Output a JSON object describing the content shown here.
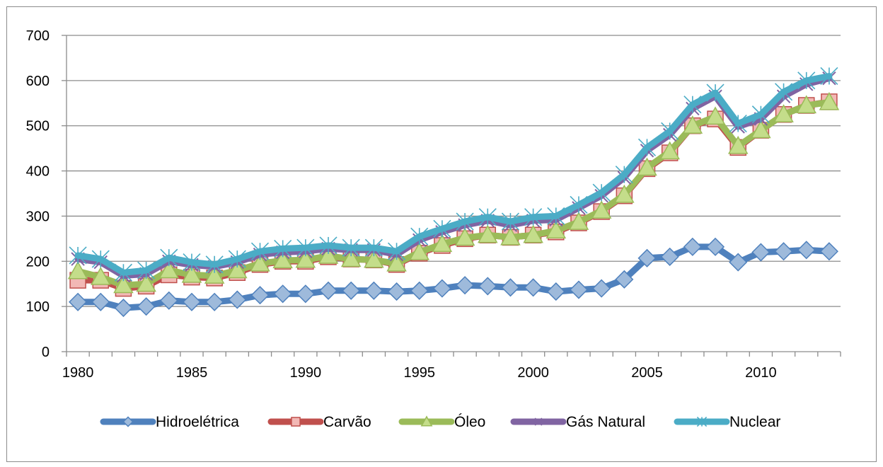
{
  "chart_data": {
    "type": "line",
    "title": "",
    "xlabel": "",
    "ylabel": "",
    "ylim": [
      0,
      700
    ],
    "xlim": [
      1980,
      2013
    ],
    "y_ticks": [
      "0",
      "100",
      "200",
      "300",
      "400",
      "500",
      "600",
      "700"
    ],
    "x_ticks": [
      "1980",
      "1985",
      "1990",
      "1995",
      "2000",
      "2005",
      "2010"
    ],
    "grid": "horizontal",
    "legend_position": "bottom",
    "x": [
      1980,
      1981,
      1982,
      1983,
      1984,
      1985,
      1986,
      1987,
      1988,
      1989,
      1990,
      1991,
      1992,
      1993,
      1994,
      1995,
      1996,
      1997,
      1998,
      1999,
      2000,
      2001,
      2002,
      2003,
      2004,
      2005,
      2006,
      2007,
      2008,
      2009,
      2010,
      2011,
      2012,
      2013
    ],
    "series": [
      {
        "name": "Hidroelétrica",
        "color": "#4F81BD",
        "marker": "diamond",
        "values": [
          110,
          110,
          97,
          100,
          113,
          110,
          110,
          115,
          125,
          128,
          128,
          135,
          135,
          135,
          133,
          135,
          140,
          147,
          145,
          142,
          142,
          133,
          137,
          140,
          160,
          207,
          210,
          232,
          232,
          198,
          220,
          222,
          225,
          222
        ]
      },
      {
        "name": "Carvão",
        "color": "#C0504D",
        "marker": "square",
        "values": [
          158,
          158,
          140,
          145,
          170,
          165,
          163,
          175,
          193,
          200,
          200,
          210,
          205,
          203,
          193,
          218,
          235,
          250,
          258,
          253,
          258,
          265,
          285,
          310,
          345,
          405,
          440,
          500,
          515,
          452,
          490,
          525,
          545,
          553
        ]
      },
      {
        "name": "Óleo",
        "color": "#9BBB59",
        "marker": "triangle",
        "values": [
          178,
          165,
          147,
          150,
          180,
          170,
          168,
          180,
          195,
          202,
          203,
          212,
          205,
          203,
          195,
          220,
          238,
          252,
          258,
          253,
          258,
          268,
          287,
          312,
          347,
          407,
          443,
          500,
          520,
          455,
          490,
          525,
          545,
          552
        ]
      },
      {
        "name": "Gás Natural",
        "color": "#8064A2",
        "marker": "x",
        "values": [
          205,
          198,
          168,
          172,
          200,
          192,
          188,
          198,
          215,
          220,
          222,
          228,
          225,
          225,
          215,
          247,
          265,
          280,
          290,
          280,
          290,
          292,
          318,
          345,
          385,
          445,
          480,
          538,
          565,
          498,
          515,
          565,
          592,
          605
        ]
      },
      {
        "name": "Nuclear",
        "color": "#4BACC6",
        "marker": "asterisk",
        "values": [
          213,
          205,
          175,
          180,
          208,
          198,
          193,
          205,
          222,
          228,
          230,
          235,
          230,
          230,
          222,
          255,
          272,
          288,
          298,
          288,
          298,
          300,
          325,
          352,
          392,
          452,
          488,
          547,
          573,
          505,
          525,
          575,
          600,
          610
        ]
      }
    ]
  }
}
